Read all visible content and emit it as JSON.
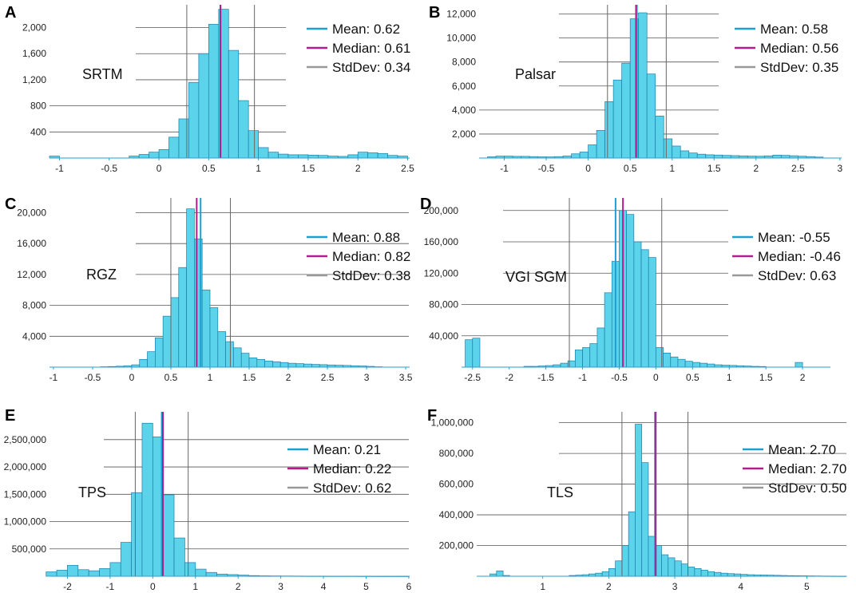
{
  "colors": {
    "bar": "#5bd3ea",
    "bar_edge": "#1c7fa8",
    "mean": "#1e9fd4",
    "median": "#b01e8c",
    "stddev": "#999999",
    "grid": "#555555"
  },
  "legend_labels": {
    "mean": "Mean",
    "median": "Median",
    "stddev": "StdDev"
  },
  "chart_data": [
    {
      "panel": "A",
      "type": "bar",
      "title": "SRTM",
      "xlim": [
        -1.1,
        2.52
      ],
      "ylim": [
        0,
        2300
      ],
      "xticks": [
        -1,
        -0.5,
        0,
        0.5,
        1,
        1.5,
        2,
        2.5
      ],
      "xtick_labels": [
        "-1",
        "-0.5",
        "0",
        "0.5",
        "1",
        "1.5",
        "2",
        "2.5"
      ],
      "yticks": [
        400,
        800,
        1200,
        1600,
        2000
      ],
      "ytick_labels": [
        "400",
        "800",
        "1,200",
        "1,600",
        "2,000"
      ],
      "bin_width": 0.1,
      "bins_start": [
        -1.1,
        -0.3,
        -0.2,
        -0.1,
        0.0,
        0.1,
        0.2,
        0.3,
        0.4,
        0.5,
        0.6,
        0.7,
        0.8,
        0.9,
        1.0,
        1.1,
        1.2,
        1.3,
        1.4,
        1.5,
        1.6,
        1.7,
        1.8,
        1.9,
        2.0,
        2.1,
        2.2,
        2.3,
        2.4
      ],
      "counts": [
        30,
        30,
        55,
        90,
        130,
        320,
        600,
        1160,
        1600,
        2050,
        2280,
        1650,
        880,
        420,
        160,
        90,
        60,
        50,
        50,
        45,
        40,
        30,
        25,
        50,
        90,
        80,
        70,
        40,
        30
      ],
      "mean": 0.62,
      "median": 0.61,
      "stddev": 0.34,
      "legend_values": {
        "mean": "0.62",
        "median": "0.61",
        "stddev": "0.34"
      }
    },
    {
      "panel": "B",
      "type": "bar",
      "title": "Palsar",
      "xlim": [
        -1.3,
        3.02
      ],
      "ylim": [
        0,
        12500
      ],
      "xticks": [
        -1,
        -0.5,
        0,
        0.5,
        1,
        1.5,
        2,
        2.5,
        3
      ],
      "xtick_labels": [
        "-1",
        "-0.5",
        "0",
        "0.5",
        "1",
        "1.5",
        "2",
        "2.5",
        "3"
      ],
      "yticks": [
        2000,
        4000,
        6000,
        8000,
        10000,
        12000
      ],
      "ytick_labels": [
        "2,000",
        "4,000",
        "6,000",
        "8,000",
        "10,000",
        "12,000"
      ],
      "bin_width": 0.1,
      "bins_start": [
        -1.2,
        -1.1,
        -1.0,
        -0.9,
        -0.8,
        -0.7,
        -0.6,
        -0.5,
        -0.4,
        -0.3,
        -0.2,
        -0.1,
        0.0,
        0.1,
        0.2,
        0.3,
        0.4,
        0.5,
        0.6,
        0.7,
        0.8,
        0.9,
        1.0,
        1.1,
        1.2,
        1.3,
        1.4,
        1.5,
        1.6,
        1.7,
        1.8,
        1.9,
        2.0,
        2.1,
        2.2,
        2.3,
        2.4,
        2.5,
        2.6,
        2.7
      ],
      "counts": [
        100,
        160,
        160,
        140,
        140,
        120,
        100,
        90,
        120,
        170,
        350,
        500,
        1100,
        2300,
        4700,
        6500,
        7900,
        11600,
        12100,
        7000,
        3500,
        1600,
        1000,
        600,
        420,
        320,
        270,
        250,
        220,
        200,
        180,
        160,
        150,
        180,
        240,
        220,
        190,
        150,
        120,
        80
      ],
      "mean": 0.58,
      "median": 0.56,
      "stddev": 0.35,
      "legend_values": {
        "mean": "0.58",
        "median": "0.56",
        "stddev": "0.35"
      }
    },
    {
      "panel": "C",
      "type": "bar",
      "title": "RGZ",
      "xlim": [
        -1.05,
        3.55
      ],
      "ylim": [
        0,
        21500
      ],
      "xticks": [
        -1,
        -0.5,
        0,
        0.5,
        1,
        1.5,
        2,
        2.5,
        3,
        3.5
      ],
      "xtick_labels": [
        "-1",
        "-0.5",
        "0",
        "0.5",
        "1",
        "1.5",
        "2",
        "2.5",
        "3",
        "3.5"
      ],
      "yticks": [
        4000,
        8000,
        12000,
        16000,
        20000
      ],
      "ytick_labels": [
        "4,000",
        "8,000",
        "12,000",
        "16,000",
        "20,000"
      ],
      "bin_width": 0.1,
      "bins_start": [
        -0.4,
        -0.3,
        -0.2,
        -0.1,
        0.0,
        0.1,
        0.2,
        0.3,
        0.4,
        0.5,
        0.6,
        0.7,
        0.8,
        0.9,
        1.0,
        1.1,
        1.2,
        1.3,
        1.4,
        1.5,
        1.6,
        1.7,
        1.8,
        1.9,
        2.0,
        2.1,
        2.2,
        2.3,
        2.4,
        2.5,
        2.6,
        2.7,
        2.8,
        2.9,
        3.0,
        3.1
      ],
      "counts": [
        50,
        80,
        120,
        180,
        300,
        1000,
        2000,
        3800,
        6600,
        9000,
        12900,
        20500,
        16600,
        10000,
        7700,
        4600,
        3300,
        2500,
        1800,
        1200,
        1000,
        800,
        700,
        600,
        500,
        450,
        400,
        350,
        320,
        280,
        250,
        220,
        180,
        150,
        100,
        50
      ],
      "mean": 0.88,
      "median": 0.82,
      "stddev": 0.38,
      "legend_values": {
        "mean": "0.88",
        "median": "0.82",
        "stddev": "0.38"
      }
    },
    {
      "panel": "D",
      "type": "bar",
      "title": "VGI SGM",
      "xlim": [
        -2.65,
        2.38
      ],
      "ylim": [
        0,
        212000
      ],
      "xticks": [
        -2.5,
        -2,
        -1.5,
        -1,
        -0.5,
        0,
        0.5,
        1,
        1.5,
        2
      ],
      "xtick_labels": [
        "-2.5",
        "-2",
        "-1.5",
        "-1",
        "-0.5",
        "0",
        "0.5",
        "1",
        "1.5",
        "2"
      ],
      "yticks": [
        40000,
        80000,
        120000,
        160000,
        200000
      ],
      "ytick_labels": [
        "40,000",
        "80,000",
        "120,000",
        "160,000",
        "200,000"
      ],
      "bin_width": 0.1,
      "bins_start": [
        -2.6,
        -2.5,
        -1.8,
        -1.7,
        -1.6,
        -1.5,
        -1.4,
        -1.3,
        -1.2,
        -1.1,
        -1.0,
        -0.9,
        -0.8,
        -0.7,
        -0.6,
        -0.5,
        -0.4,
        -0.3,
        -0.2,
        -0.1,
        0.0,
        0.1,
        0.2,
        0.3,
        0.4,
        0.5,
        0.6,
        0.7,
        0.8,
        0.9,
        1.0,
        1.1,
        1.2,
        1.3,
        1.4,
        1.9
      ],
      "counts": [
        35000,
        37000,
        1000,
        1000,
        1500,
        2000,
        3000,
        5000,
        8000,
        22000,
        25000,
        30000,
        50000,
        95000,
        135000,
        200000,
        195000,
        160000,
        150000,
        140000,
        25000,
        18000,
        13000,
        10000,
        7500,
        6000,
        5000,
        4000,
        3000,
        2500,
        2200,
        1800,
        1400,
        1000,
        800,
        6000
      ],
      "mean": -0.55,
      "median": -0.46,
      "stddev": 0.63,
      "legend_values": {
        "mean": "-0.55",
        "median": "-0.46",
        "stddev": "0.63"
      }
    },
    {
      "panel": "E",
      "type": "bar",
      "title": "TPS",
      "xlim": [
        -2.42,
        6.02
      ],
      "ylim": [
        0,
        2950000
      ],
      "xticks": [
        -2,
        -1,
        0,
        1,
        2,
        3,
        4,
        5,
        6
      ],
      "xtick_labels": [
        "-2",
        "-1",
        "0",
        "1",
        "2",
        "3",
        "4",
        "5",
        "6"
      ],
      "yticks": [
        500000,
        1000000,
        1500000,
        2000000,
        2500000
      ],
      "ytick_labels": [
        "500,000",
        "1,000,000",
        "1,500,000",
        "2,000,000",
        "2,500,000"
      ],
      "bin_width": 0.25,
      "bins_start": [
        -2.5,
        -2.25,
        -2.0,
        -1.75,
        -1.5,
        -1.25,
        -1.0,
        -0.75,
        -0.5,
        -0.25,
        0.0,
        0.25,
        0.5,
        0.75,
        1.0,
        1.25,
        1.5,
        1.75,
        2.0,
        2.25,
        2.5,
        2.75,
        3.0,
        3.25,
        3.5,
        3.75,
        4.0,
        4.25,
        4.5,
        4.75,
        5.0,
        5.25,
        5.5,
        5.75
      ],
      "counts": [
        80000,
        110000,
        200000,
        120000,
        100000,
        140000,
        250000,
        620000,
        1530000,
        2800000,
        2550000,
        1490000,
        700000,
        250000,
        130000,
        70000,
        40000,
        30000,
        20000,
        12000,
        8000,
        6000,
        5000,
        4000,
        3000,
        3000,
        2000,
        2000,
        2000,
        1500,
        1500,
        1000,
        1000,
        1000
      ],
      "mean": 0.21,
      "median": 0.22,
      "stddev": 0.62,
      "legend_values": {
        "mean": "0.21",
        "median": "0.22",
        "stddev": "0.62"
      }
    },
    {
      "panel": "F",
      "type": "bar",
      "title": "TLS",
      "xlim": [
        0,
        5.6
      ],
      "ylim": [
        0,
        1050000
      ],
      "xticks": [
        1,
        2,
        3,
        4,
        5
      ],
      "xtick_labels": [
        "1",
        "2",
        "3",
        "4",
        "5"
      ],
      "yticks": [
        200000,
        400000,
        600000,
        800000,
        1000000
      ],
      "ytick_labels": [
        "200,000",
        "400,000",
        "600,000",
        "800,000",
        "1,000,000"
      ],
      "bin_width": 0.1,
      "bins_start": [
        0.2,
        0.3,
        0.4,
        1.4,
        1.5,
        1.6,
        1.7,
        1.8,
        1.9,
        2.0,
        2.1,
        2.2,
        2.3,
        2.4,
        2.5,
        2.6,
        2.7,
        2.8,
        2.9,
        3.0,
        3.1,
        3.2,
        3.3,
        3.4,
        3.5,
        3.6,
        3.7,
        3.8,
        3.9,
        4.0,
        4.1,
        4.2,
        4.3,
        4.4,
        4.5,
        4.6,
        4.7,
        4.8,
        4.9,
        5.0,
        5.1,
        5.2,
        5.3,
        5.4,
        5.5
      ],
      "counts": [
        15000,
        35000,
        5000,
        5000,
        7000,
        10000,
        15000,
        20000,
        30000,
        50000,
        100000,
        200000,
        420000,
        990000,
        740000,
        260000,
        200000,
        140000,
        120000,
        100000,
        80000,
        60000,
        50000,
        40000,
        30000,
        25000,
        20000,
        17000,
        15000,
        12000,
        10000,
        9000,
        8000,
        7000,
        6000,
        5000,
        4000,
        3500,
        3000,
        2500,
        2000,
        1500,
        1200,
        1000,
        800
      ],
      "bins_override_note": "",
      "mean": 2.7,
      "median": 2.7,
      "stddev": 0.5,
      "legend_values": {
        "mean": "2.70",
        "median": "2.70",
        "stddev": "0.50"
      }
    }
  ]
}
